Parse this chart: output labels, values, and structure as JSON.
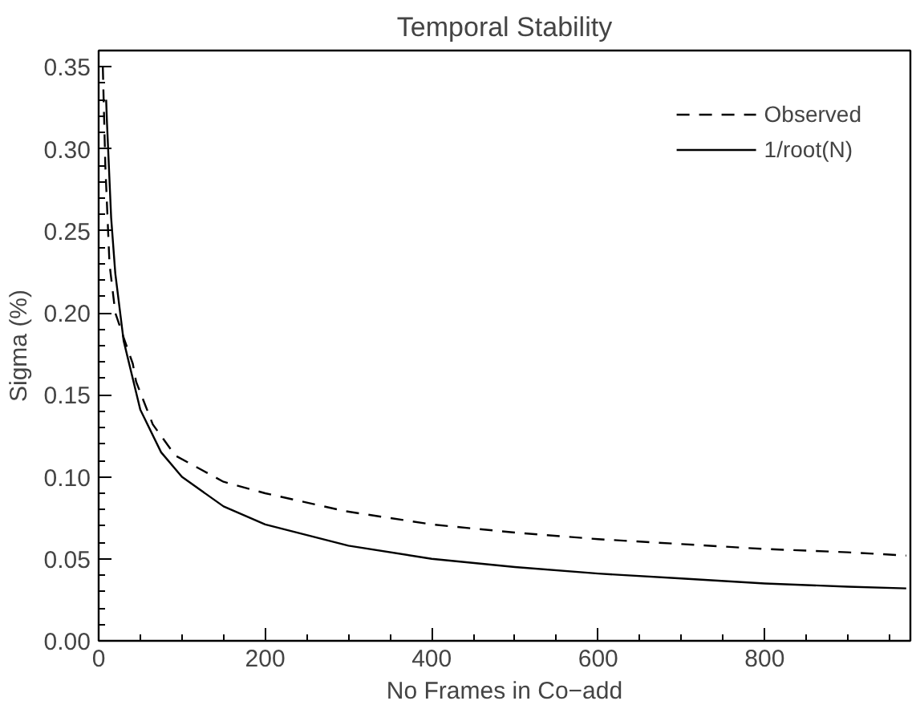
{
  "chart_data": {
    "type": "line",
    "title": "Temporal Stability",
    "xlabel": "No Frames in Co−add",
    "ylabel": "Sigma (%)",
    "xlim": [
      0,
      975
    ],
    "ylim": [
      0,
      0.36
    ],
    "xticks": [
      0,
      200,
      400,
      600,
      800
    ],
    "yticks": [
      {
        "value": 0,
        "label": "0.00"
      },
      0.05,
      {
        "value": 0.1,
        "label": "0.10"
      },
      0.15,
      {
        "value": 0.2,
        "label": "0.20"
      },
      0.25,
      {
        "value": 0.3,
        "label": "0.30"
      },
      0.35
    ],
    "grid": false,
    "legend": "top right",
    "marker": "none",
    "series": [
      {
        "name": "Observed",
        "color": "#000000",
        "line_style": "dashed",
        "x": [
          5,
          8,
          13,
          20,
          30,
          41,
          45,
          65,
          92,
          150,
          200,
          297,
          400,
          500,
          600,
          700,
          800,
          900,
          970
        ],
        "values": [
          0.35,
          0.29,
          0.23,
          0.2,
          0.185,
          0.169,
          0.158,
          0.132,
          0.113,
          0.097,
          0.09,
          0.079,
          0.071,
          0.066,
          0.062,
          0.059,
          0.056,
          0.054,
          0.052
        ]
      },
      {
        "name": "1/root(N)",
        "color": "#000000",
        "line_style": "solid",
        "x": [
          9,
          10,
          15,
          20,
          30,
          50,
          75,
          100,
          150,
          200,
          300,
          400,
          500,
          600,
          700,
          800,
          900,
          970
        ],
        "values": [
          0.33,
          0.316,
          0.258,
          0.224,
          0.183,
          0.141,
          0.115,
          0.1,
          0.082,
          0.071,
          0.058,
          0.05,
          0.045,
          0.041,
          0.038,
          0.035,
          0.033,
          0.032
        ]
      }
    ]
  }
}
